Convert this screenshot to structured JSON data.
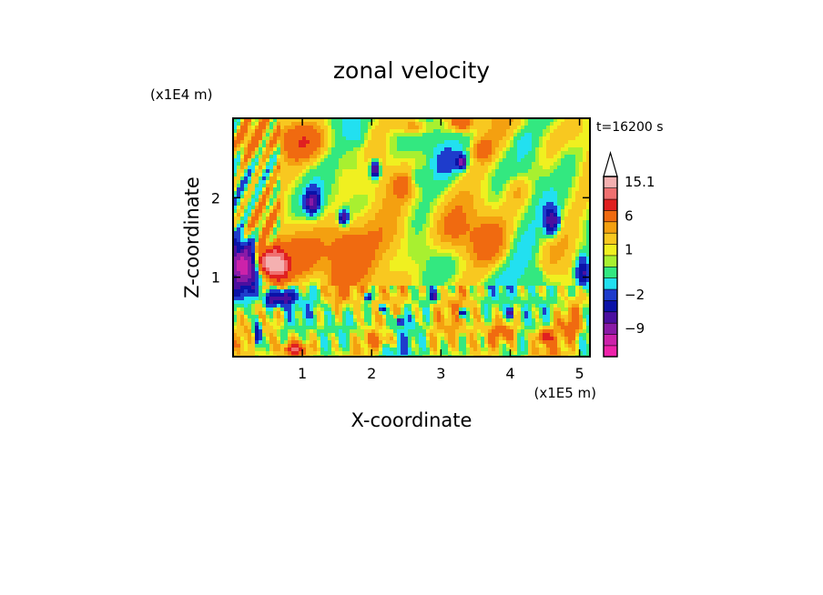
{
  "chart_data": {
    "type": "heatmap",
    "title": "zonal velocity",
    "subtitle": "t=16200 s",
    "xlabel": "X-coordinate",
    "ylabel": "Z-coordinate",
    "x_unit": "(x1E5 m)",
    "y_unit": "(x1E4 m)",
    "xlim": [
      0.0,
      5.15
    ],
    "ylim": [
      0.0,
      3.0
    ],
    "x_ticks": [
      1,
      2,
      3,
      4,
      5
    ],
    "y_ticks": [
      1,
      2
    ],
    "colorbar": {
      "levels": [
        -15,
        -12,
        -9,
        -6,
        -4,
        -2,
        -1,
        0,
        0.5,
        1,
        2,
        3,
        6,
        9,
        12,
        15.1
      ],
      "colors": [
        "#ee22aa",
        "#cc22aa",
        "#8a1aa6",
        "#4b0fa0",
        "#0b12a8",
        "#1e3ccc",
        "#22e0f0",
        "#33e880",
        "#a8f030",
        "#f0f020",
        "#f8c820",
        "#f4a010",
        "#f06a10",
        "#e02020",
        "#f07070",
        "#f4b0b0"
      ],
      "labels": [
        {
          "value": 15.1,
          "text": "15.1"
        },
        {
          "value": 6,
          "text": "6"
        },
        {
          "value": 1,
          "text": "1"
        },
        {
          "value": -2,
          "text": "−2"
        },
        {
          "value": -9,
          "text": "−9"
        }
      ],
      "extend": "max"
    },
    "grid": false
  }
}
